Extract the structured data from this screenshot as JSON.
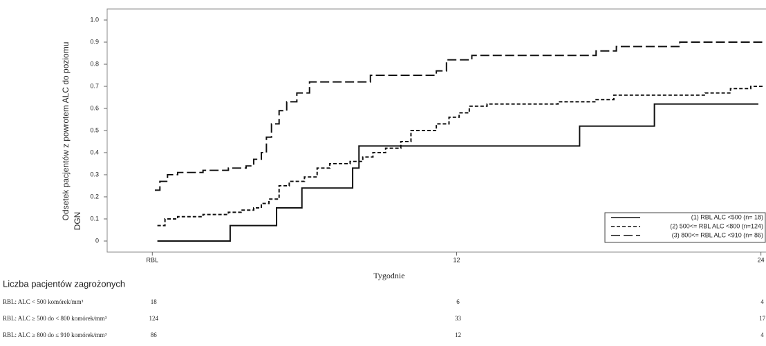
{
  "chart_data": {
    "type": "step",
    "ylabel": [
      "Odsetek pacjentów z powrotem ALC do poziomu",
      "DGN"
    ],
    "xlabel": "Tygodnie",
    "xlim": [
      -1.78,
      24.2
    ],
    "ylim": [
      -0.05,
      1.05
    ],
    "xticks": [
      {
        "value": 0,
        "label": "RBL"
      },
      12,
      24
    ],
    "yticks": [
      0,
      0.1,
      0.2,
      0.3,
      0.4,
      0.5,
      0.6,
      0.7,
      0.8,
      0.9,
      {
        "value": 1,
        "label": "1.0"
      }
    ],
    "legend": "lower right",
    "series": [
      {
        "name": "(1) RBL ALC <500 (n= 18)",
        "color": "#111111",
        "dash": "solid",
        "x": [
          0.2,
          3.07,
          4.9,
          5.9,
          7.9,
          8.15,
          16.85,
          19.8,
          23.9
        ],
        "values": [
          0,
          0.07,
          0.15,
          0.24,
          0.33,
          0.43,
          0.52,
          0.62,
          0.62
        ]
      },
      {
        "name": "(2) 500<= RBL ALC <800 (n=124)",
        "color": "#111111",
        "dash": "short",
        "x": [
          0.2,
          0.5,
          1,
          2,
          3,
          3.5,
          4,
          4.3,
          4.6,
          5,
          5.4,
          6,
          6.5,
          7,
          7.8,
          8.3,
          8.7,
          9.2,
          9.8,
          10.2,
          11.2,
          11.7,
          12.1,
          12.5,
          13.2,
          16,
          17.5,
          18.2,
          21.8,
          22.8,
          23.6,
          24.1
        ],
        "values": [
          0.07,
          0.1,
          0.11,
          0.12,
          0.13,
          0.14,
          0.15,
          0.17,
          0.19,
          0.25,
          0.27,
          0.29,
          0.33,
          0.35,
          0.36,
          0.38,
          0.4,
          0.42,
          0.45,
          0.5,
          0.53,
          0.56,
          0.58,
          0.61,
          0.62,
          0.63,
          0.64,
          0.66,
          0.67,
          0.69,
          0.7,
          0.7
        ]
      },
      {
        "name": "(3) 800<= RBL ALC <910 (n= 86)",
        "color": "#111111",
        "dash": "long",
        "x": [
          0.1,
          0.3,
          0.6,
          1,
          2,
          3,
          3.7,
          4,
          4.3,
          4.5,
          4.7,
          5,
          5.3,
          5.7,
          6.2,
          8.6,
          11.2,
          11.6,
          12.6,
          17.5,
          18.3,
          20.8,
          24.1
        ],
        "values": [
          0.23,
          0.27,
          0.3,
          0.31,
          0.32,
          0.33,
          0.34,
          0.37,
          0.4,
          0.47,
          0.53,
          0.59,
          0.63,
          0.67,
          0.72,
          0.75,
          0.77,
          0.82,
          0.84,
          0.86,
          0.88,
          0.9,
          0.9
        ]
      }
    ],
    "risk_table": {
      "title": "Liczba pacjentów zagrożonych",
      "x": [
        0,
        12,
        24
      ],
      "rows": [
        {
          "label": "RBL: ALC < 500 komórek/mm³",
          "values": [
            18,
            6,
            4
          ]
        },
        {
          "label": "RBL: ALC ≥ 500 do < 800 komórek/mm³",
          "values": [
            124,
            33,
            17
          ]
        },
        {
          "label": "RBL: ALC ≥ 800 do ≤ 910 komórek/mm³",
          "values": [
            86,
            12,
            4
          ]
        }
      ]
    }
  }
}
